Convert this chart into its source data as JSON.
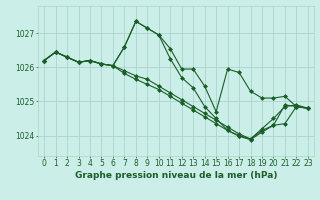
{
  "title": "Graphe pression niveau de la mer (hPa)",
  "bg_color": "#cceee8",
  "grid_color": "#aad4cc",
  "line_color": "#1a5e28",
  "marker": "D",
  "markersize": 2.0,
  "linewidth": 0.8,
  "xlim": [
    -0.5,
    23.5
  ],
  "ylim": [
    1023.4,
    1027.8
  ],
  "yticks": [
    1024,
    1025,
    1026,
    1027
  ],
  "xticks": [
    0,
    1,
    2,
    3,
    4,
    5,
    6,
    7,
    8,
    9,
    10,
    11,
    12,
    13,
    14,
    15,
    16,
    17,
    18,
    19,
    20,
    21,
    22,
    23
  ],
  "series": [
    [
      1026.2,
      1026.45,
      1026.3,
      1026.15,
      1026.2,
      1026.1,
      1026.05,
      1026.6,
      1027.35,
      1027.15,
      1026.95,
      1026.55,
      1025.95,
      1025.95,
      1025.45,
      1024.7,
      1025.95,
      1025.85,
      1025.3,
      1025.1,
      1025.1,
      1025.15,
      1024.85,
      1024.8
    ],
    [
      1026.2,
      1026.45,
      1026.3,
      1026.15,
      1026.2,
      1026.1,
      1026.05,
      1026.6,
      1027.35,
      1027.15,
      1026.95,
      1026.25,
      1025.7,
      1025.4,
      1024.85,
      1024.5,
      1024.15,
      1024.0,
      1023.9,
      1024.2,
      1024.5,
      1024.85,
      1024.9,
      1024.8
    ],
    [
      1026.2,
      1026.45,
      1026.3,
      1026.15,
      1026.2,
      1026.1,
      1026.05,
      1025.9,
      1025.75,
      1025.65,
      1025.45,
      1025.25,
      1025.05,
      1024.85,
      1024.65,
      1024.45,
      1024.25,
      1024.05,
      1023.9,
      1024.15,
      1024.3,
      1024.35,
      1024.85,
      1024.8
    ],
    [
      1026.2,
      1026.45,
      1026.3,
      1026.15,
      1026.2,
      1026.1,
      1026.05,
      1025.82,
      1025.65,
      1025.5,
      1025.35,
      1025.15,
      1024.95,
      1024.75,
      1024.55,
      1024.35,
      1024.15,
      1023.98,
      1023.88,
      1024.1,
      1024.3,
      1024.9,
      1024.85,
      1024.8
    ]
  ],
  "tick_fontsize": 5.5,
  "title_fontsize": 6.5
}
